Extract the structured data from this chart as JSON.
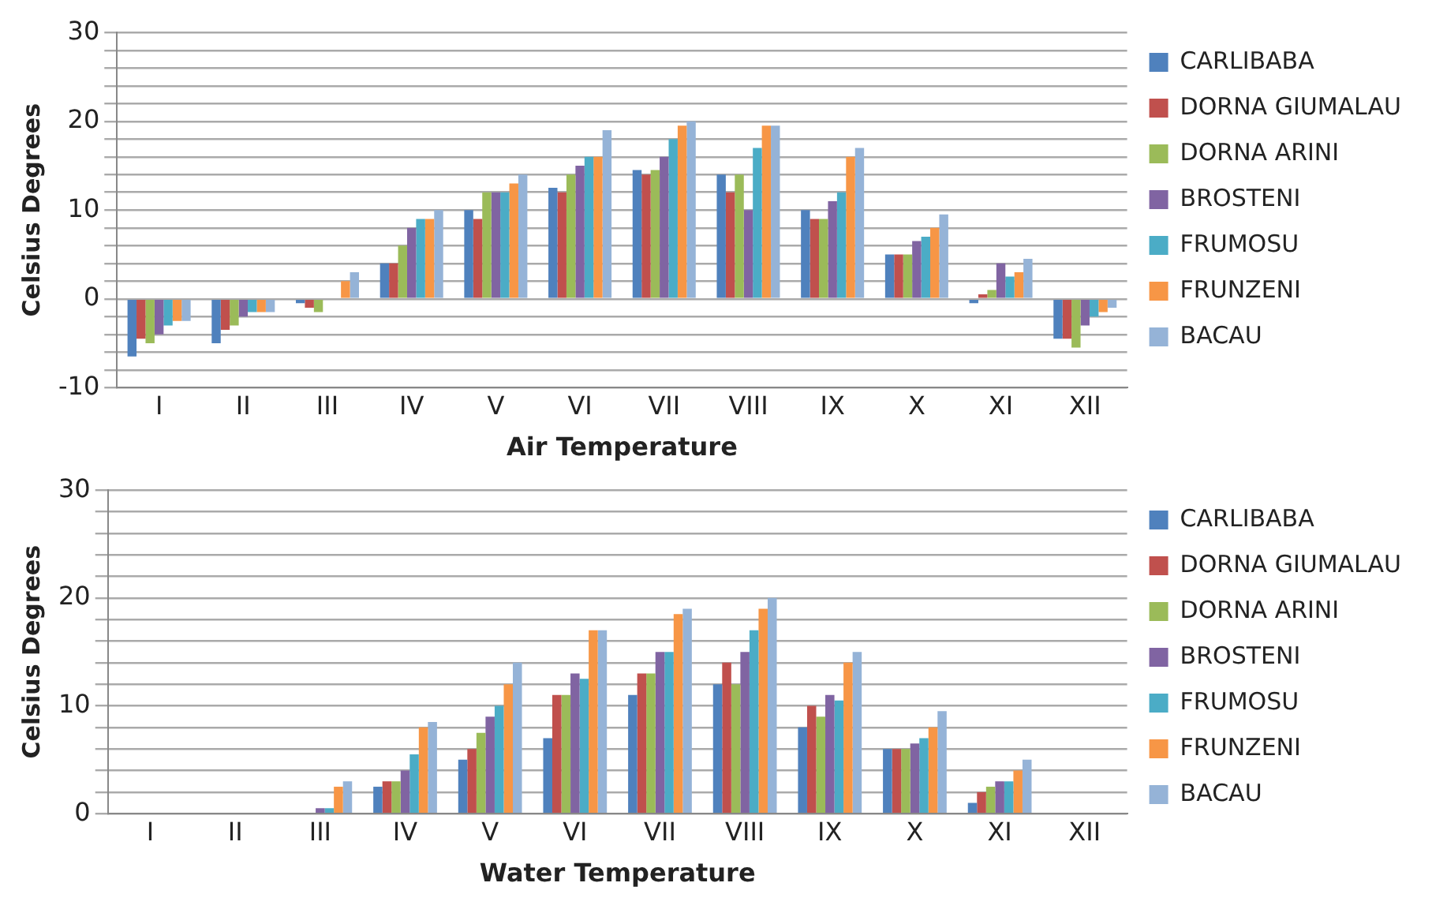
{
  "chart_data": [
    {
      "type": "bar",
      "xlabel": "Air Temperature",
      "ylabel": "Celsius Degrees",
      "categories": [
        "I",
        "II",
        "III",
        "IV",
        "V",
        "VI",
        "VII",
        "VIII",
        "IX",
        "X",
        "XI",
        "XII"
      ],
      "ylim": [
        -10,
        30
      ],
      "yticks": [
        -10,
        {
          "value": -8,
          "label": null
        },
        {
          "value": -6,
          "label": null
        },
        {
          "value": -4,
          "label": null
        },
        {
          "value": -2,
          "label": null
        },
        0,
        {
          "value": 2,
          "label": null
        },
        {
          "value": 4,
          "label": null
        },
        {
          "value": 6,
          "label": null
        },
        {
          "value": 8,
          "label": null
        },
        10,
        {
          "value": 12,
          "label": null
        },
        {
          "value": 14,
          "label": null
        },
        {
          "value": 16,
          "label": null
        },
        {
          "value": 18,
          "label": null
        },
        20,
        {
          "value": 22,
          "label": null
        },
        {
          "value": 24,
          "label": null
        },
        {
          "value": 26,
          "label": null
        },
        {
          "value": 28,
          "label": null
        },
        30
      ],
      "grid": "y",
      "legend": "right",
      "series": [
        {
          "name": "CARLIBABA",
          "color": "#4f81bd",
          "values": [
            -6.5,
            -5,
            -0.5,
            4,
            10,
            12.5,
            14.5,
            14,
            10,
            5,
            -0.5,
            -4.5
          ]
        },
        {
          "name": "DORNA GIUMALAU",
          "color": "#c0504d",
          "values": [
            -4.5,
            -3.5,
            -1,
            4,
            9,
            12,
            14,
            12,
            9,
            5,
            0.5,
            -4.5
          ]
        },
        {
          "name": "DORNA ARINI",
          "color": "#9bbb59",
          "values": [
            -5,
            -3,
            -1.5,
            6,
            12,
            14,
            14.5,
            14,
            9,
            5,
            1,
            -5.5
          ]
        },
        {
          "name": "BROSTENI",
          "color": "#8064a2",
          "values": [
            -4,
            -2,
            0,
            8,
            12,
            15,
            16,
            10,
            11,
            6.5,
            4,
            -3
          ]
        },
        {
          "name": "FRUMOSU",
          "color": "#4bacc6",
          "values": [
            -3,
            -1.5,
            0,
            9,
            12,
            16,
            18,
            17,
            12,
            7,
            2.5,
            -2
          ]
        },
        {
          "name": "FRUNZENI",
          "color": "#f79646",
          "values": [
            -2.5,
            -1.5,
            2,
            9,
            13,
            16,
            19.5,
            19.5,
            16,
            8,
            3,
            -1.5
          ]
        },
        {
          "name": "BACAU",
          "color": "#95b3d7",
          "values": [
            -2.5,
            -1.5,
            3,
            10,
            14,
            19,
            20,
            19.5,
            17,
            9.5,
            4.5,
            -1
          ]
        }
      ]
    },
    {
      "type": "bar",
      "xlabel": "Water Temperature",
      "ylabel": "Celsius Degrees",
      "categories": [
        "I",
        "II",
        "III",
        "IV",
        "V",
        "VI",
        "VII",
        "VIII",
        "IX",
        "X",
        "XI",
        "XII"
      ],
      "ylim": [
        0,
        30
      ],
      "yticks": [
        0,
        {
          "value": 2,
          "label": null
        },
        {
          "value": 4,
          "label": null
        },
        {
          "value": 6,
          "label": null
        },
        {
          "value": 8,
          "label": null
        },
        10,
        {
          "value": 12,
          "label": null
        },
        {
          "value": 14,
          "label": null
        },
        {
          "value": 16,
          "label": null
        },
        {
          "value": 18,
          "label": null
        },
        20,
        {
          "value": 22,
          "label": null
        },
        {
          "value": 24,
          "label": null
        },
        {
          "value": 26,
          "label": null
        },
        {
          "value": 28,
          "label": null
        },
        30
      ],
      "grid": "y",
      "legend": "right",
      "series": [
        {
          "name": "CARLIBABA",
          "color": "#4f81bd",
          "values": [
            0,
            0,
            0,
            2.5,
            5,
            7,
            11,
            12,
            8,
            6,
            1,
            0
          ]
        },
        {
          "name": "DORNA GIUMALAU",
          "color": "#c0504d",
          "values": [
            0,
            0,
            0,
            3,
            6,
            11,
            13,
            14,
            10,
            6,
            2,
            0
          ]
        },
        {
          "name": "DORNA ARINI",
          "color": "#9bbb59",
          "values": [
            0,
            0,
            0,
            3,
            7.5,
            11,
            13,
            12,
            9,
            6,
            2.5,
            0
          ]
        },
        {
          "name": "BROSTENI",
          "color": "#8064a2",
          "values": [
            0,
            0,
            0.5,
            4,
            9,
            13,
            15,
            15,
            11,
            6.5,
            3,
            0
          ]
        },
        {
          "name": "FRUMOSU",
          "color": "#4bacc6",
          "values": [
            0,
            0,
            0.5,
            5.5,
            10,
            12.5,
            15,
            17,
            10.5,
            7,
            3,
            0
          ]
        },
        {
          "name": "FRUNZENI",
          "color": "#f79646",
          "values": [
            0,
            0,
            2.5,
            8,
            12,
            17,
            18.5,
            19,
            14,
            8,
            4,
            0
          ]
        },
        {
          "name": "BACAU",
          "color": "#95b3d7",
          "values": [
            0,
            0,
            3,
            8.5,
            14,
            17,
            19,
            20,
            15,
            9.5,
            5,
            0
          ]
        }
      ]
    }
  ]
}
